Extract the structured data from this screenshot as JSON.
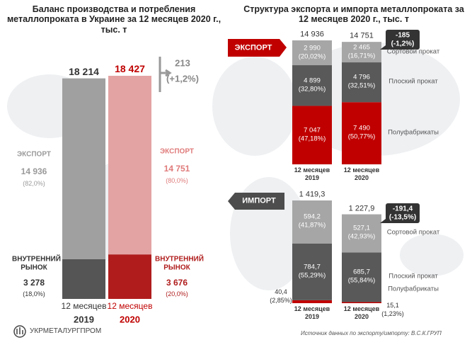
{
  "logo": "УКРМЕТАЛУРГПРОМ",
  "source": "Источник данных по экспорту/импорту: В.С.К.ГРУП",
  "right_title": "Структура экспорта и импорта металлопроката за 12 месяцев 2020 г., тыс. т",
  "chart_data": [
    {
      "type": "stacked_bar",
      "title": "Баланс производства и потребления металлопроката в Украине за 12 месяцев 2020 г., тыс. т",
      "category_prefix": "12 месяцев",
      "categories": [
        "2019",
        "2020"
      ],
      "category_colors": [
        "#333333",
        "#c00000"
      ],
      "series": [
        {
          "name": "ВНУТРЕННИЙ РЫНОК",
          "colors": [
            "#555555",
            "#b01c1c"
          ],
          "values": [
            3278,
            3676
          ],
          "value_labels": [
            "3 278",
            "3 676"
          ],
          "percent_labels": [
            "(18,0%)",
            "(20,0%)"
          ]
        },
        {
          "name": "ЭКСПОРТ",
          "colors": [
            "#a0a0a0",
            "#e3a3a3"
          ],
          "values": [
            14936,
            14751
          ],
          "value_labels": [
            "14 936",
            "14 751"
          ],
          "percent_labels": [
            "(82,0%)",
            "(80,0%)"
          ]
        }
      ],
      "totals": {
        "values": [
          18214,
          18427
        ],
        "value_labels": [
          "18 214",
          "18 427"
        ]
      },
      "change_labels": [
        "213",
        "(+1,2%)"
      ]
    },
    {
      "type": "stacked_bar",
      "badge": "ЭКСПОРТ",
      "category_prefix": "12 месяцев",
      "categories": [
        "2019",
        "2020"
      ],
      "series": [
        {
          "name": "Полуфабрикаты",
          "color": "#c00000",
          "values": [
            7047,
            7490
          ],
          "value_labels": [
            "7 047",
            "7 490"
          ],
          "percent_labels": [
            "(47,18%)",
            "(50,77%)"
          ]
        },
        {
          "name": "Плоский прокат",
          "color": "#595959",
          "values": [
            4899,
            4796
          ],
          "value_labels": [
            "4 899",
            "4 796"
          ],
          "percent_labels": [
            "(32,80%)",
            "(32,51%)"
          ]
        },
        {
          "name": "Сортовой прокат",
          "color": "#a6a6a6",
          "values": [
            2990,
            2465
          ],
          "value_labels": [
            "2 990",
            "2 465"
          ],
          "percent_labels": [
            "(20,02%)",
            "(16,71%)"
          ]
        }
      ],
      "totals": {
        "values": [
          14936,
          14751
        ],
        "value_labels": [
          "14 936",
          "14 751"
        ]
      },
      "change_labels": [
        "-185",
        "(-1,2%)"
      ]
    },
    {
      "type": "stacked_bar",
      "badge": "ИМПОРТ",
      "category_prefix": "12 месяцев",
      "categories": [
        "2019",
        "2020"
      ],
      "series": [
        {
          "name": "Полуфабрикаты",
          "color": "#c00000",
          "values": [
            40.4,
            15.1
          ],
          "value_labels": [
            "40,4",
            "15,1"
          ],
          "percent_labels": [
            "(2,85%)",
            "(1,23%)"
          ]
        },
        {
          "name": "Плоский прокат",
          "color": "#595959",
          "values": [
            784.7,
            685.7
          ],
          "value_labels": [
            "784,7",
            "685,7"
          ],
          "percent_labels": [
            "(55,29%)",
            "(55,84%)"
          ]
        },
        {
          "name": "Сортовой прокат",
          "color": "#a6a6a6",
          "values": [
            594.2,
            527.1
          ],
          "value_labels": [
            "594,2",
            "527,1"
          ],
          "percent_labels": [
            "(41,87%)",
            "(42,93%)"
          ]
        }
      ],
      "totals": {
        "values": [
          1419.3,
          1227.9
        ],
        "value_labels": [
          "1 419,3",
          "1 227,9"
        ]
      },
      "change_labels": [
        "-191,4",
        "(-13,5%)"
      ]
    }
  ]
}
